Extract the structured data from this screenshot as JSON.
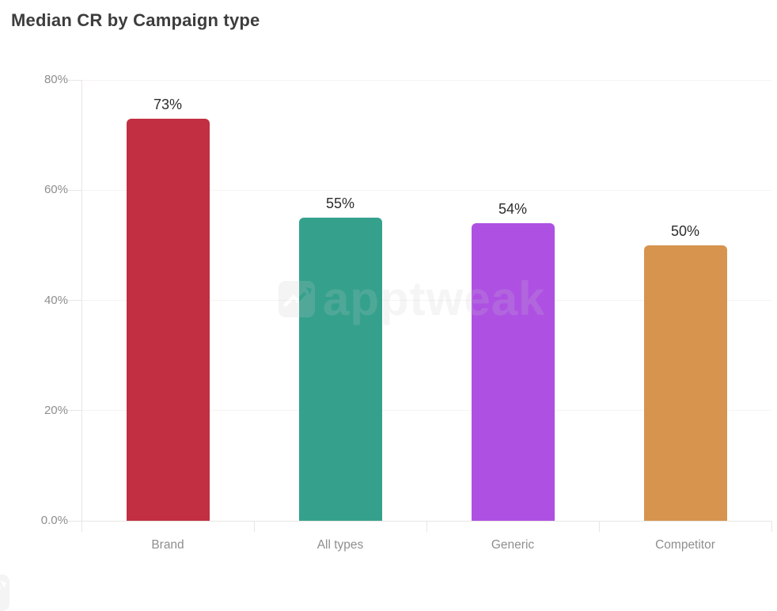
{
  "title": "Median CR by Campaign type",
  "watermark": {
    "text": "apptweak",
    "icon": "apptweak-logo-icon"
  },
  "chart_data": {
    "type": "bar",
    "title": "Median CR by Campaign type",
    "categories": [
      "Brand",
      "All types",
      "Generic",
      "Competitor"
    ],
    "values": [
      73,
      55,
      54,
      50
    ],
    "value_labels": [
      "73%",
      "55%",
      "54%",
      "50%"
    ],
    "bar_colors": [
      "#c22f42",
      "#35a18d",
      "#ae51e3",
      "#d6944e"
    ],
    "ylim": [
      0,
      80
    ],
    "yticks": [
      {
        "value": 0,
        "label": "0.0%"
      },
      {
        "value": 20,
        "label": "20%"
      },
      {
        "value": 40,
        "label": "40%"
      },
      {
        "value": 60,
        "label": "60%"
      },
      {
        "value": 80,
        "label": "80%"
      }
    ],
    "grid": "horizontal",
    "legend": "none",
    "xlabel": "",
    "ylabel": ""
  },
  "colors": {
    "background": "#ffffff",
    "title_text": "#3d3d3d",
    "axis_label": "#8e8e8e",
    "value_label": "#2c2c2c",
    "axis_line": "#e9e6e3",
    "gridline": "#f6f4f2"
  }
}
